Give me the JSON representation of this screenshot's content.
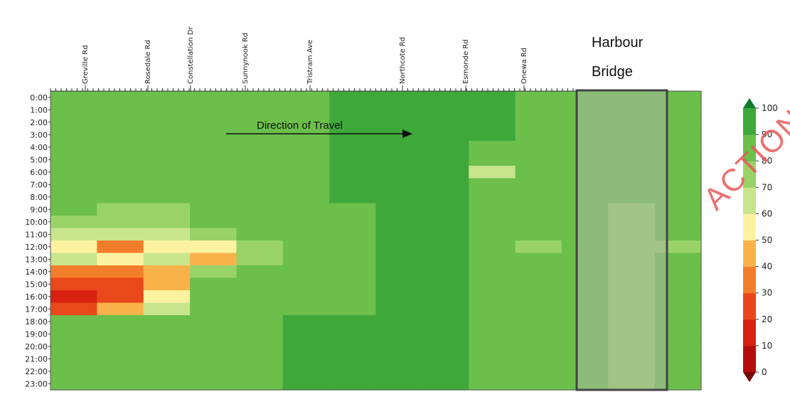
{
  "chart_data": {
    "type": "heatmap",
    "title": "",
    "xlabel": "",
    "ylabel": "",
    "x_categories": [
      "Greville Rd",
      "Rosedale Rd",
      "Constellation Dr",
      "Sunnynook Rd",
      "Tristram Ave",
      "Northcote Rd",
      "Esmonde Rd",
      "Onewa Rd"
    ],
    "y_categories": [
      "0:00",
      "1:00",
      "2:00",
      "3:00",
      "4:00",
      "5:00",
      "6:00",
      "7:00",
      "8:00",
      "9:00",
      "10:00",
      "11:00",
      "12:00",
      "13:00",
      "14:00",
      "15:00",
      "16:00",
      "17:00",
      "18:00",
      "19:00",
      "20:00",
      "21:00",
      "22:00",
      "23:00"
    ],
    "columns": 14,
    "values": [
      [
        88,
        80,
        80,
        86,
        86,
        88,
        90,
        90,
        90,
        90,
        82,
        84,
        80,
        80
      ],
      [
        88,
        80,
        80,
        86,
        86,
        88,
        90,
        90,
        90,
        90,
        82,
        84,
        80,
        80
      ],
      [
        88,
        80,
        80,
        86,
        86,
        88,
        90,
        90,
        90,
        90,
        82,
        84,
        80,
        80
      ],
      [
        88,
        80,
        80,
        86,
        86,
        88,
        90,
        90,
        90,
        90,
        82,
        84,
        80,
        80
      ],
      [
        88,
        80,
        80,
        86,
        88,
        88,
        90,
        90,
        90,
        88,
        84,
        84,
        80,
        80
      ],
      [
        88,
        80,
        80,
        86,
        88,
        88,
        90,
        90,
        90,
        88,
        84,
        84,
        80,
        82
      ],
      [
        88,
        82,
        82,
        86,
        88,
        88,
        90,
        90,
        90,
        60,
        84,
        84,
        80,
        82
      ],
      [
        86,
        86,
        86,
        88,
        88,
        88,
        90,
        90,
        90,
        88,
        84,
        84,
        80,
        82
      ],
      [
        86,
        80,
        80,
        84,
        88,
        88,
        90,
        90,
        90,
        88,
        84,
        84,
        80,
        82
      ],
      [
        80,
        78,
        78,
        82,
        84,
        84,
        88,
        90,
        90,
        88,
        84,
        84,
        78,
        82
      ],
      [
        76,
        70,
        72,
        80,
        82,
        82,
        84,
        90,
        90,
        88,
        82,
        82,
        78,
        82
      ],
      [
        68,
        60,
        64,
        76,
        80,
        82,
        86,
        90,
        90,
        88,
        82,
        82,
        78,
        82
      ],
      [
        58,
        38,
        56,
        58,
        74,
        82,
        88,
        90,
        90,
        88,
        76,
        80,
        76,
        78
      ],
      [
        66,
        54,
        66,
        42,
        76,
        84,
        88,
        90,
        90,
        88,
        80,
        80,
        76,
        80
      ],
      [
        30,
        30,
        48,
        76,
        84,
        86,
        88,
        90,
        90,
        88,
        82,
        80,
        78,
        80
      ],
      [
        20,
        26,
        48,
        82,
        86,
        86,
        88,
        90,
        90,
        88,
        82,
        80,
        78,
        80
      ],
      [
        16,
        26,
        50,
        82,
        86,
        88,
        88,
        90,
        90,
        88,
        82,
        80,
        78,
        80
      ],
      [
        24,
        40,
        62,
        82,
        86,
        88,
        88,
        90,
        90,
        88,
        82,
        80,
        78,
        80
      ],
      [
        82,
        82,
        84,
        86,
        88,
        90,
        90,
        90,
        90,
        88,
        82,
        80,
        78,
        80
      ],
      [
        88,
        86,
        86,
        86,
        88,
        90,
        90,
        90,
        90,
        88,
        82,
        80,
        78,
        80
      ],
      [
        86,
        84,
        86,
        86,
        88,
        90,
        90,
        90,
        90,
        88,
        82,
        80,
        78,
        80
      ],
      [
        82,
        82,
        84,
        86,
        88,
        90,
        90,
        90,
        90,
        88,
        82,
        80,
        78,
        80
      ],
      [
        80,
        82,
        84,
        86,
        88,
        90,
        90,
        90,
        90,
        88,
        82,
        80,
        78,
        80
      ],
      [
        80,
        82,
        84,
        86,
        88,
        90,
        90,
        90,
        90,
        88,
        82,
        80,
        78,
        80
      ]
    ],
    "colorbar": {
      "ticks": [
        0,
        10,
        20,
        30,
        40,
        50,
        60,
        70,
        80,
        90,
        100
      ],
      "range": [
        0,
        100
      ],
      "extend": "both"
    },
    "annotations": {
      "direction": "Direction of Travel",
      "bridge": [
        "Harbour",
        "Bridge"
      ]
    },
    "watermark": "ACTION"
  },
  "colors": {
    "bins": [
      "#b50d0d",
      "#d6220f",
      "#e9481a",
      "#f27d2a",
      "#f9b24a",
      "#fdf2a0",
      "#c9e58c",
      "#99d368",
      "#6bbf4a",
      "#3ea83a",
      "#0f7a27"
    ],
    "bridge_overlay": "#a9b8a0",
    "bridge_border": "#444444"
  }
}
